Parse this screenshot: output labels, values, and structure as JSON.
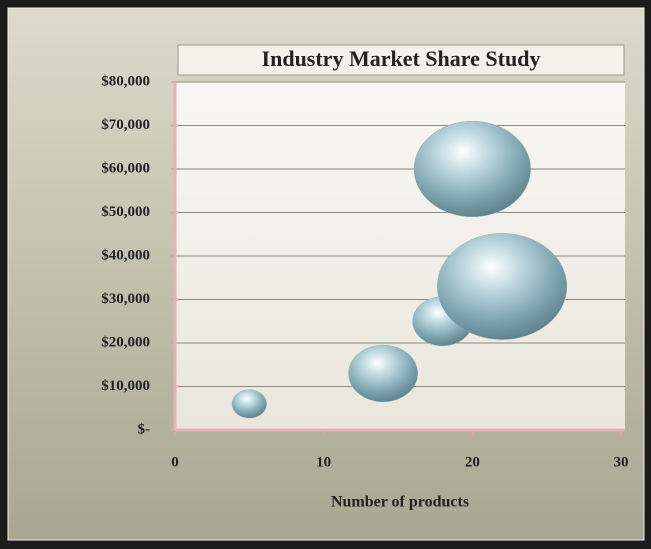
{
  "chart_data": {
    "type": "bubble",
    "title": "Industry Market Share Study",
    "x_label": "Number of products",
    "x": [
      5,
      14,
      18,
      22,
      20
    ],
    "values": [
      6000,
      13000,
      25000,
      33000,
      60000
    ],
    "sizes": [
      3,
      12,
      9,
      42,
      34
    ],
    "color": "#8fb6c2",
    "xlim": [
      0,
      30
    ],
    "xticks": [
      0,
      10,
      20,
      30
    ],
    "ylim": [
      0,
      80000
    ],
    "yticks": [
      {
        "value": 0,
        "label": "$-"
      },
      {
        "value": 10000,
        "label": "$10,000"
      },
      {
        "value": 20000,
        "label": "$20,000"
      },
      {
        "value": 30000,
        "label": "$30,000"
      },
      {
        "value": 40000,
        "label": "$40,000"
      },
      {
        "value": 50000,
        "label": "$50,000"
      },
      {
        "value": 60000,
        "label": "$60,000"
      },
      {
        "value": 70000,
        "label": "$70,000"
      },
      {
        "value": 80000,
        "label": "$80,000"
      }
    ],
    "grid": true
  }
}
